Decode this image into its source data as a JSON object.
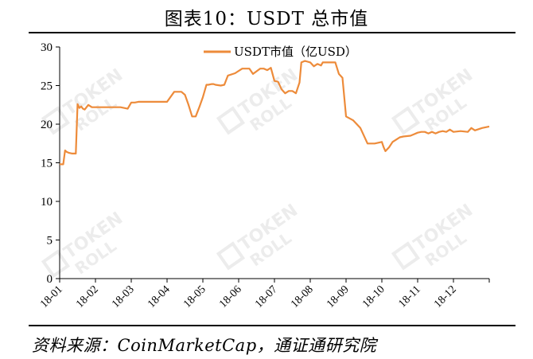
{
  "figure_title": "图表10：USDT 总市值",
  "source_note": "资料来源：CoinMarketCap，通证通研究院",
  "watermark": {
    "line1": "TOKEN",
    "line2": "ROLL"
  },
  "chart_data": {
    "type": "line",
    "title": "",
    "xlabel": "",
    "ylabel": "",
    "ylim": [
      0,
      30
    ],
    "yticks": [
      0,
      5,
      10,
      15,
      20,
      25,
      30
    ],
    "xlim": [
      0,
      12
    ],
    "x_tick_labels": [
      "18-01",
      "18-02",
      "18-03",
      "18-04",
      "18-05",
      "18-06",
      "18-07",
      "18-08",
      "18-09",
      "18-10",
      "18-11",
      "18-12"
    ],
    "grid": false,
    "legend_position": "top-center",
    "line_color": "#ED8B3A",
    "series": [
      {
        "name": "USDT市值（亿USD）",
        "x": [
          0,
          0.1,
          0.15,
          0.2,
          0.25,
          0.35,
          0.45,
          0.5,
          0.55,
          0.6,
          0.65,
          0.7,
          0.8,
          0.9,
          1.0,
          1.1,
          1.2,
          1.3,
          1.5,
          1.7,
          1.9,
          2.0,
          2.1,
          2.2,
          2.3,
          2.5,
          2.6,
          2.7,
          2.8,
          3.0,
          3.2,
          3.4,
          3.5,
          3.6,
          3.7,
          3.8,
          3.9,
          4.0,
          4.1,
          4.15,
          4.25,
          4.3,
          4.35,
          4.5,
          4.6,
          4.7,
          4.9,
          5.1,
          5.3,
          5.4,
          5.6,
          5.7,
          5.8,
          5.9,
          6.0,
          6.1,
          6.2,
          6.3,
          6.4,
          6.5,
          6.6,
          6.7,
          6.75,
          6.85,
          7.0,
          7.1,
          7.2,
          7.3,
          7.35,
          7.5,
          7.6,
          7.7,
          7.8,
          7.9,
          8.0,
          8.2,
          8.4,
          8.6,
          8.8,
          8.9,
          9.0,
          9.05,
          9.1,
          9.2,
          9.3,
          9.4,
          9.5,
          9.6,
          9.8,
          9.9,
          10.0,
          10.1,
          10.2,
          10.3,
          10.4,
          10.5,
          10.6,
          10.7,
          10.8,
          10.9,
          11.0,
          11.2,
          11.4,
          11.5,
          11.6,
          11.8,
          12.0
        ],
        "values": [
          14.8,
          14.8,
          16.6,
          16.4,
          16.3,
          16.2,
          16.2,
          22.6,
          22.1,
          22.3,
          22.0,
          21.9,
          22.5,
          22.2,
          22.2,
          22.2,
          22.2,
          22.2,
          22.2,
          22.2,
          22.0,
          22.8,
          22.8,
          22.9,
          22.9,
          22.9,
          22.9,
          22.9,
          22.9,
          22.9,
          24.2,
          24.2,
          23.8,
          22.5,
          21.0,
          21.0,
          22.2,
          23.5,
          25.1,
          25.1,
          25.2,
          25.2,
          25.1,
          25.0,
          25.1,
          26.3,
          26.6,
          27.2,
          27.2,
          26.5,
          27.2,
          27.2,
          27.0,
          27.3,
          25.6,
          25.5,
          24.5,
          24.0,
          24.3,
          24.3,
          24.0,
          25.4,
          28.0,
          28.2,
          28.0,
          27.5,
          27.8,
          27.6,
          28.0,
          28.0,
          28.0,
          28.0,
          26.5,
          26.0,
          21.0,
          20.5,
          19.5,
          17.5,
          17.5,
          17.6,
          17.7,
          17.0,
          16.5,
          17.0,
          17.7,
          18.0,
          18.3,
          18.4,
          18.5,
          18.7,
          18.9,
          19.0,
          19.0,
          18.8,
          19.0,
          18.8,
          19.0,
          19.1,
          19.0,
          19.3,
          19.0,
          19.1,
          19.0,
          19.5,
          19.2,
          19.5,
          19.7
        ]
      }
    ]
  }
}
